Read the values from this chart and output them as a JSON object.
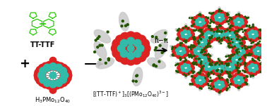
{
  "bg_color": "#ffffff",
  "label_ttf": "TT-TTF",
  "label_pi_pi": "π−π",
  "plus_sign": "+",
  "ttf_color": "#22cc00",
  "keggin_red": "#dd2222",
  "keggin_teal": "#33bbaa",
  "honeycomb_red": "#dd2222",
  "honeycomb_teal": "#33bbaa",
  "honeycomb_green": "#225500",
  "honeycomb_white": "#cccccc",
  "fig_width": 3.78,
  "fig_height": 1.51,
  "dpi": 100
}
